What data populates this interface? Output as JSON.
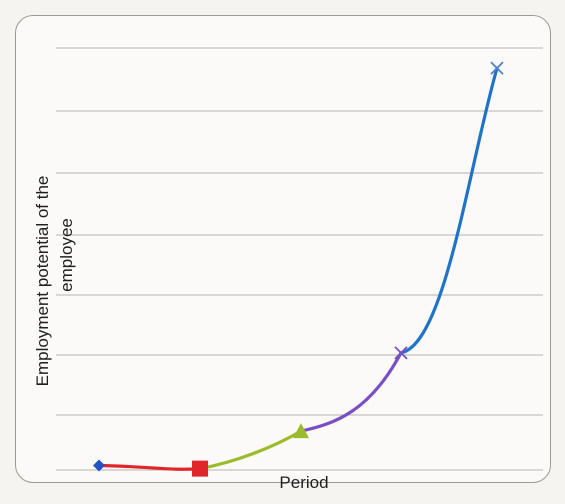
{
  "chart_data": {
    "type": "line",
    "title": "",
    "xlabel": "Period",
    "ylabel": "Employment potential of the employee",
    "grid": true,
    "series": [
      {
        "points": [
          {
            "x": 1,
            "y": 0.2
          },
          {
            "x": 2,
            "y": 0.15
          },
          {
            "x": 3,
            "y": 0.75
          },
          {
            "x": 4,
            "y": 2.0
          },
          {
            "x": 5,
            "y": 6.55
          }
        ],
        "segments": [
          {
            "color": "#e1262b"
          },
          {
            "color": "#9bbb2d"
          },
          {
            "color": "#7b4fc4"
          },
          {
            "color": "#1f74c8"
          }
        ],
        "markers": [
          {
            "shape": "diamond",
            "color": "#2453c6"
          },
          {
            "shape": "square",
            "color": "#e1262b"
          },
          {
            "shape": "triangle",
            "color": "#9bbb2d"
          },
          {
            "shape": "x",
            "color": "#7b4fc4"
          },
          {
            "shape": "x",
            "color": "#4d82d1"
          }
        ]
      }
    ]
  }
}
